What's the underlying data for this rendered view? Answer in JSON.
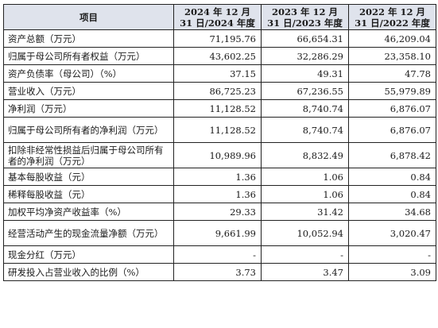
{
  "header": {
    "item": "项目",
    "col_2024": "2024 年 12 月 31 日/2024 年度",
    "col_2023": "2023 年 12 月 31 日/2023 年度",
    "col_2022": "2022 年 12 月 31 日/2022 年度"
  },
  "rows": [
    {
      "label": "资产总额（万元）",
      "v2024": "71,195.76",
      "v2023": "66,654.31",
      "v2022": "46,209.04"
    },
    {
      "label": "归属于母公司所有者权益（万元）",
      "v2024": "43,602.25",
      "v2023": "32,286.29",
      "v2022": "23,358.10"
    },
    {
      "label": "资产负债率（母公司）（%）",
      "v2024": "37.15",
      "v2023": "49.31",
      "v2022": "47.78"
    },
    {
      "label": "营业收入（万元）",
      "v2024": "86,725.23",
      "v2023": "67,236.55",
      "v2022": "55,979.89"
    },
    {
      "label": "净利润（万元）",
      "v2024": "11,128.52",
      "v2023": "8,740.74",
      "v2022": "6,876.07"
    },
    {
      "label": "归属于母公司所有者的净利润（万元）",
      "v2024": "11,128.52",
      "v2023": "8,740.74",
      "v2022": "6,876.07"
    },
    {
      "label": "扣除非经常性损益后归属于母公司所有者的净利润（万元）",
      "v2024": "10,989.96",
      "v2023": "8,832.49",
      "v2022": "6,878.42"
    },
    {
      "label": "基本每股收益（元）",
      "v2024": "1.36",
      "v2023": "1.06",
      "v2022": "0.84"
    },
    {
      "label": "稀释每股收益（元）",
      "v2024": "1.36",
      "v2023": "1.06",
      "v2022": "0.84"
    },
    {
      "label": "加权平均净资产收益率（%）",
      "v2024": "29.33",
      "v2023": "31.42",
      "v2022": "34.68"
    },
    {
      "label": "经营活动产生的现金流量净额（万元）",
      "v2024": "9,661.99",
      "v2023": "10,052.94",
      "v2022": "3,020.47"
    },
    {
      "label": "现金分红（万元）",
      "v2024": "-",
      "v2023": "-",
      "v2022": "-"
    },
    {
      "label": "研发投入占营业收入的比例（%）",
      "v2024": "3.73",
      "v2023": "3.47",
      "v2022": "3.09"
    }
  ]
}
